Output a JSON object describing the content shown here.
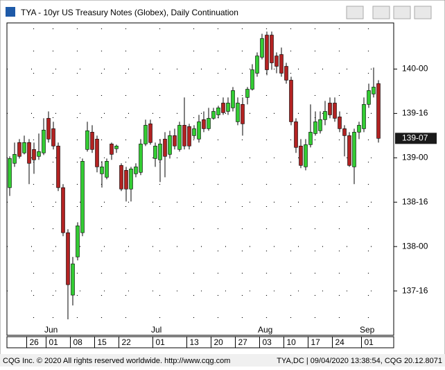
{
  "window_title": "TYA - 10yr US Treasury Notes (Globex), Daily Continuation",
  "footer_left": "CQG Inc. © 2020 All rights reserved worldwide. http://www.cqg.com",
  "footer_right": "TYA,DC | 09/04/2020 13:38:54, CQG 20.12.8071",
  "chart_data": {
    "type": "candlestick",
    "categories": [
      null,
      null,
      null,
      null,
      "26",
      null,
      null,
      null,
      "01",
      null,
      null,
      null,
      null,
      "08",
      null,
      null,
      null,
      null,
      "15",
      null,
      null,
      null,
      null,
      "22",
      null,
      null,
      null,
      null,
      null,
      null,
      "01",
      null,
      null,
      null,
      null,
      null,
      null,
      "13",
      null,
      null,
      null,
      null,
      "20",
      null,
      null,
      null,
      null,
      "27",
      null,
      null,
      null,
      null,
      "03",
      null,
      null,
      null,
      null,
      "10",
      null,
      null,
      null,
      null,
      "17",
      null,
      null,
      null,
      null,
      "24",
      null,
      null,
      null,
      null,
      null,
      "01",
      null,
      null,
      null
    ],
    "months": [
      "Jun",
      "Jul",
      "Aug",
      "Sep"
    ],
    "open": [
      138.664,
      138.938,
      139.172,
      139.055,
      139.172,
      139.094,
      139.016,
      139.055,
      139.445,
      139.328,
      139.133,
      138.664,
      138.156,
      137.453,
      137.883,
      138.156,
      139.094,
      139.289,
      139.211,
      138.82,
      138.781,
      139.156,
      139.102,
      138.914,
      138.859,
      138.648,
      138.82,
      138.836,
      139.156,
      139.383,
      138.992,
      138.977,
      139.211,
      139.039,
      139.25,
      139.094,
      139.367,
      139.352,
      139.25,
      139.211,
      139.43,
      139.328,
      139.445,
      139.484,
      139.617,
      139.523,
      139.563,
      139.406,
      139.602,
      139.68,
      139.773,
      139.953,
      140.133,
      140.383,
      140.383,
      140.148,
      140.164,
      140.031,
      139.875,
      139.406,
      139.133,
      138.898,
      139.148,
      139.273,
      139.305,
      139.43,
      139.617,
      139.617,
      139.461,
      139.328,
      139.25,
      138.898,
      139.289,
      139.328,
      139.602,
      139.719,
      139.836
    ],
    "high": [
      139.016,
      139.172,
      139.211,
      139.25,
      139.211,
      139.172,
      139.273,
      139.445,
      139.523,
      139.406,
      139.172,
      138.703,
      138.195,
      137.883,
      138.273,
      138.992,
      139.406,
      139.367,
      139.25,
      138.961,
      138.992,
      139.172,
      139.148,
      138.938,
      138.898,
      138.898,
      138.938,
      139.211,
      139.43,
      139.43,
      139.172,
      139.211,
      139.289,
      139.305,
      139.328,
      139.406,
      139.68,
      139.383,
      139.367,
      139.484,
      139.523,
      139.563,
      139.563,
      139.586,
      139.68,
      139.68,
      139.797,
      139.68,
      139.68,
      139.797,
      140.055,
      140.188,
      140.398,
      140.422,
      140.422,
      140.188,
      140.242,
      140.07,
      139.914,
      139.445,
      139.211,
      139.211,
      139.602,
      139.523,
      139.523,
      139.641,
      139.68,
      139.68,
      139.523,
      139.367,
      139.289,
      139.328,
      139.406,
      139.68,
      139.836,
      140.016,
      139.875
    ],
    "low": [
      138.57,
      138.898,
      138.992,
      139.039,
      138.703,
      138.82,
      138.977,
      139.031,
      139.172,
      139.094,
      138.625,
      138.117,
      137.18,
      137.336,
      137.844,
      138.117,
      139.07,
      139.055,
      138.836,
      138.664,
      138.758,
      138.977,
      139.055,
      138.625,
      138.508,
      138.508,
      138.781,
      138.805,
      139.133,
      139.148,
      138.898,
      138.727,
      138.781,
      138.992,
      139.094,
      139.07,
      139.094,
      139.094,
      139.211,
      139.172,
      139.289,
      139.305,
      139.43,
      139.445,
      139.484,
      139.484,
      139.523,
      139.367,
      139.25,
      139.602,
      139.758,
      139.914,
      140.109,
      139.93,
      139.992,
      139.953,
      139.914,
      139.836,
      139.367,
      139.055,
      138.883,
      138.859,
      139.117,
      139.25,
      139.273,
      139.367,
      139.445,
      139.406,
      139.289,
      139.016,
      138.898,
      138.703,
      139.211,
      139.289,
      139.563,
      139.68,
      139.172
    ],
    "close": [
      138.992,
      139.039,
      139.016,
      139.172,
      138.938,
      138.977,
      139.07,
      139.313,
      139.211,
      139.133,
      138.664,
      138.156,
      137.57,
      137.805,
      138.234,
      138.961,
      139.305,
      139.094,
      138.898,
      138.898,
      138.961,
      139.039,
      139.133,
      138.648,
      138.648,
      138.875,
      138.898,
      139.156,
      139.367,
      139.172,
      139.133,
      139.156,
      139.016,
      139.25,
      139.133,
      139.367,
      139.133,
      139.133,
      139.328,
      139.406,
      139.328,
      139.445,
      139.523,
      139.563,
      139.508,
      139.617,
      139.758,
      139.617,
      139.383,
      139.773,
      139.992,
      140.148,
      140.344,
      139.992,
      140.07,
      140.031,
      139.953,
      139.875,
      139.406,
      139.117,
      138.914,
      139.148,
      139.289,
      139.406,
      139.43,
      139.523,
      139.484,
      139.445,
      139.328,
      139.25,
      138.914,
      139.289,
      139.367,
      139.602,
      139.758,
      139.797,
      139.219
    ],
    "up_color": "#33cc33",
    "down_color": "#b22222",
    "last_price": {
      "value": 139.219,
      "label": "139-07"
    },
    "ylim": [
      137.0,
      140.52
    ],
    "yticks": [
      {
        "value": 137.5,
        "label": "137-16"
      },
      {
        "value": 138,
        "label": "138-00"
      },
      {
        "value": 138.5,
        "label": "138-16"
      },
      {
        "value": 139,
        "label": "139-00"
      },
      {
        "value": 139.5,
        "label": "139-16"
      },
      {
        "value": 140,
        "label": "140-00"
      }
    ],
    "grid": true
  }
}
